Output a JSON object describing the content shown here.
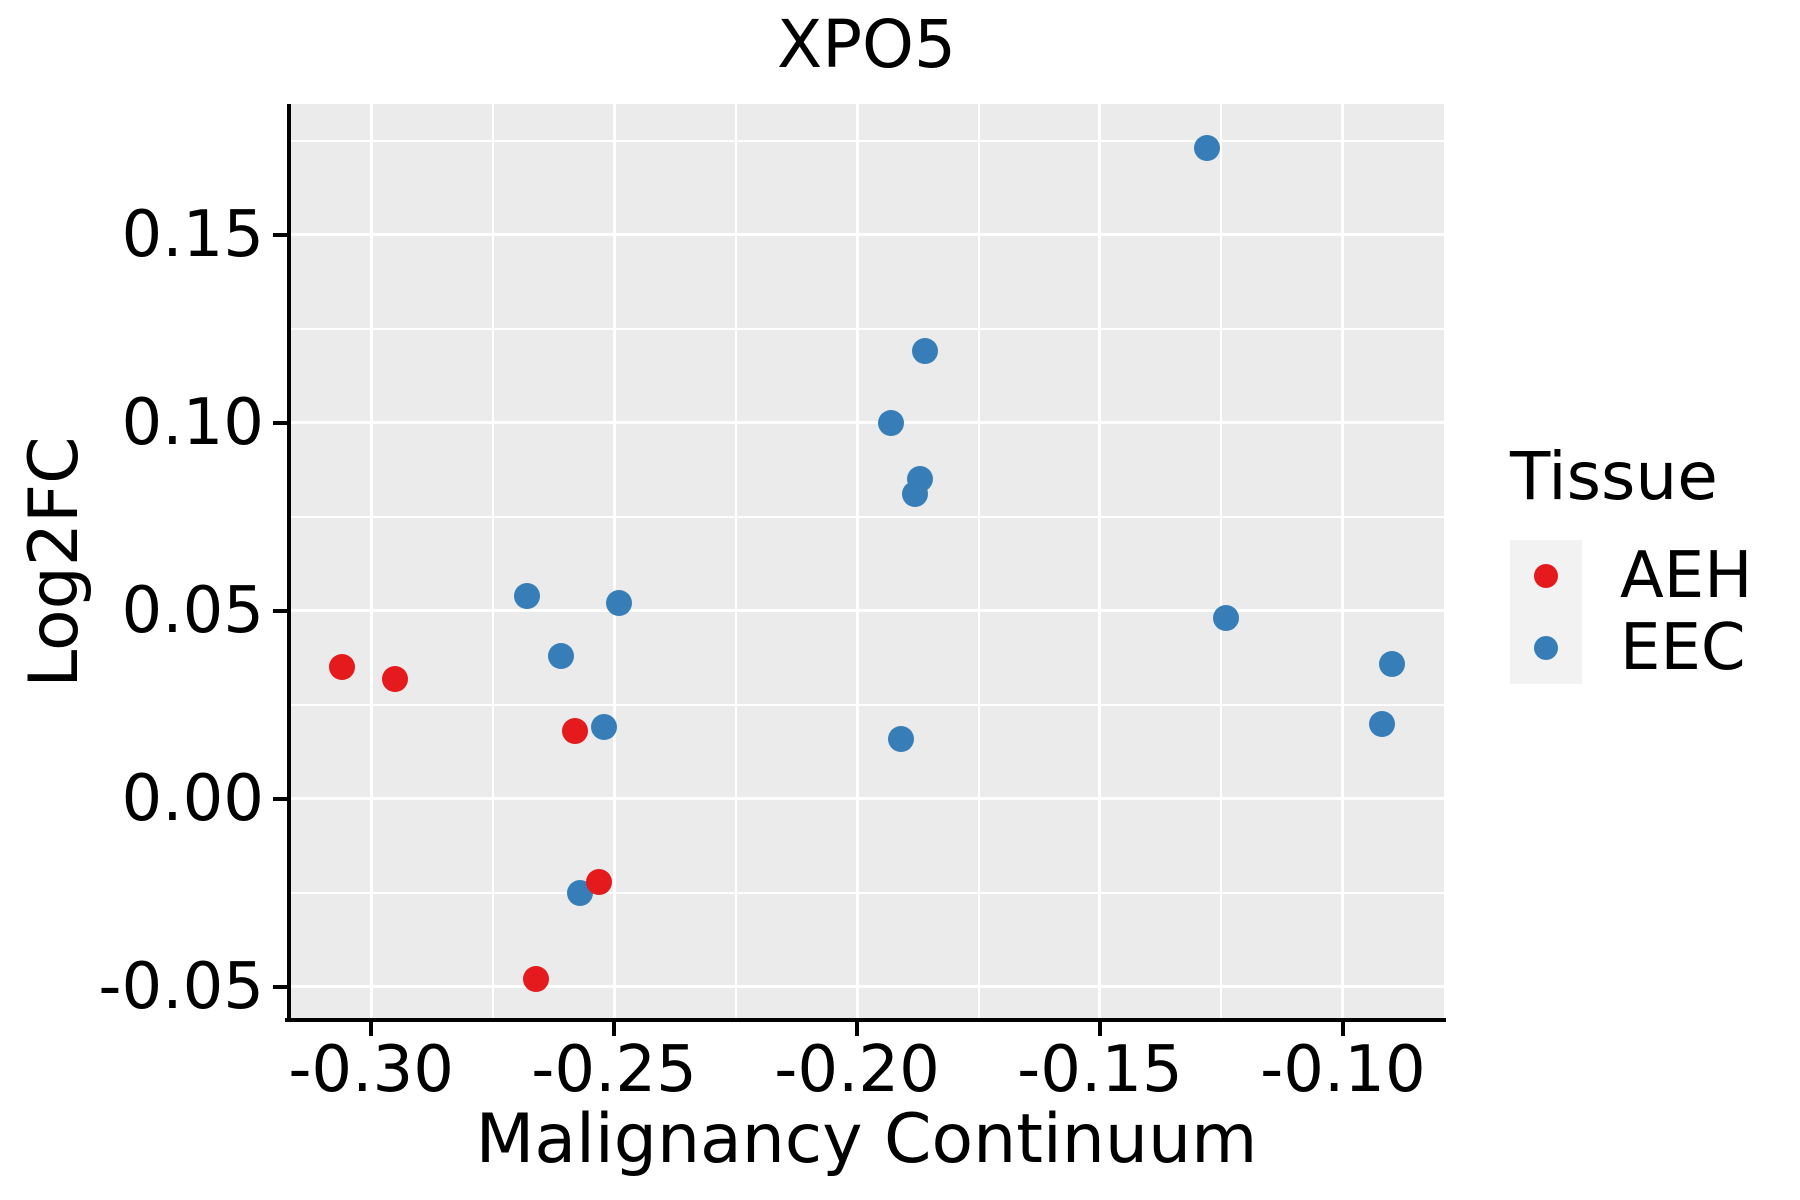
{
  "chart_data": {
    "type": "scatter",
    "title": "XPO5",
    "xlabel": "Malignancy Continuum",
    "ylabel": "Log2FC",
    "xlim": [
      -0.3169,
      -0.0792
    ],
    "ylim": [
      -0.0588,
      0.1848
    ],
    "x_ticks": {
      "values": [
        -0.3,
        -0.25,
        -0.2,
        -0.15,
        -0.1
      ],
      "labels": [
        "-0.30",
        "-0.25",
        "-0.20",
        "-0.15",
        "-0.10"
      ]
    },
    "y_ticks": {
      "values": [
        -0.05,
        0.0,
        0.05,
        0.1,
        0.15
      ],
      "labels": [
        "-0.05",
        "0.00",
        "0.05",
        "0.10",
        "0.15"
      ]
    },
    "x_minor_gridlines": [
      -0.275,
      -0.225,
      -0.175,
      -0.125
    ],
    "y_minor_gridlines": [
      -0.025,
      0.025,
      0.075,
      0.125,
      0.175
    ],
    "grid": {
      "major": true,
      "minor": true
    },
    "panel_background": "#ebebeb",
    "gridline_color": "#ffffff",
    "series_colors": {
      "AEH": "#e41a1c",
      "EEC": "#377eb8"
    },
    "legend": {
      "title": "Tissue",
      "position": "right",
      "entries": [
        {
          "label": "AEH",
          "color": "#e41a1c"
        },
        {
          "label": "EEC",
          "color": "#377eb8"
        }
      ]
    },
    "points": [
      {
        "x": -0.268,
        "y": 0.054,
        "tissue": "EEC"
      },
      {
        "x": -0.261,
        "y": 0.038,
        "tissue": "EEC"
      },
      {
        "x": -0.257,
        "y": -0.025,
        "tissue": "EEC"
      },
      {
        "x": -0.249,
        "y": 0.052,
        "tissue": "EEC"
      },
      {
        "x": -0.193,
        "y": 0.1,
        "tissue": "EEC"
      },
      {
        "x": -0.191,
        "y": 0.016,
        "tissue": "EEC"
      },
      {
        "x": -0.188,
        "y": 0.081,
        "tissue": "EEC"
      },
      {
        "x": -0.187,
        "y": 0.085,
        "tissue": "EEC"
      },
      {
        "x": -0.186,
        "y": 0.119,
        "tissue": "EEC"
      },
      {
        "x": -0.128,
        "y": 0.173,
        "tissue": "EEC"
      },
      {
        "x": -0.124,
        "y": 0.048,
        "tissue": "EEC"
      },
      {
        "x": -0.092,
        "y": 0.02,
        "tissue": "EEC"
      },
      {
        "x": -0.09,
        "y": 0.036,
        "tissue": "EEC"
      },
      {
        "x": -0.306,
        "y": 0.035,
        "tissue": "AEH"
      },
      {
        "x": -0.295,
        "y": 0.032,
        "tissue": "AEH"
      },
      {
        "x": -0.266,
        "y": -0.048,
        "tissue": "AEH"
      },
      {
        "x": -0.258,
        "y": 0.018,
        "tissue": "AEH"
      },
      {
        "x": -0.253,
        "y": -0.022,
        "tissue": "AEH"
      },
      {
        "x": -0.252,
        "y": 0.019,
        "tissue": "EEC"
      }
    ]
  }
}
